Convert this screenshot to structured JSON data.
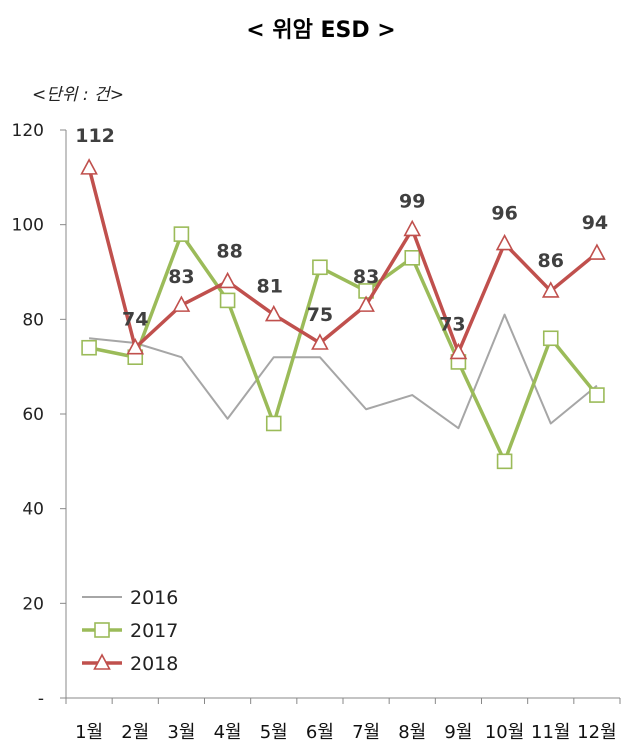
{
  "chart_data": {
    "type": "line",
    "title": "< 위암 ESD >",
    "unit_label": "<단위 : 건>",
    "categories": [
      "1월",
      "2월",
      "3월",
      "4월",
      "5월",
      "6월",
      "7월",
      "8월",
      "9월",
      "10월",
      "11월",
      "12월"
    ],
    "ylim": [
      0,
      120
    ],
    "yticks": [
      "-",
      "20",
      "40",
      "60",
      "80",
      "100",
      "120"
    ],
    "grid": false,
    "legend_position": "bottom-left",
    "series": [
      {
        "name": "2016",
        "color": "#a6a6a6",
        "marker": "none",
        "values": [
          76,
          75,
          72,
          59,
          72,
          72,
          61,
          64,
          57,
          81,
          58,
          66
        ]
      },
      {
        "name": "2017",
        "color": "#9bbb59",
        "marker": "square",
        "values": [
          74,
          72,
          98,
          84,
          58,
          91,
          86,
          93,
          71,
          50,
          76,
          64
        ]
      },
      {
        "name": "2018",
        "color": "#c0504d",
        "marker": "triangle",
        "values": [
          112,
          74,
          83,
          88,
          81,
          75,
          83,
          99,
          73,
          96,
          86,
          94
        ]
      }
    ],
    "data_labels": [
      "112",
      "74",
      "83",
      "88",
      "81",
      "75",
      "83",
      "99",
      "73",
      "96",
      "86",
      "94"
    ]
  }
}
